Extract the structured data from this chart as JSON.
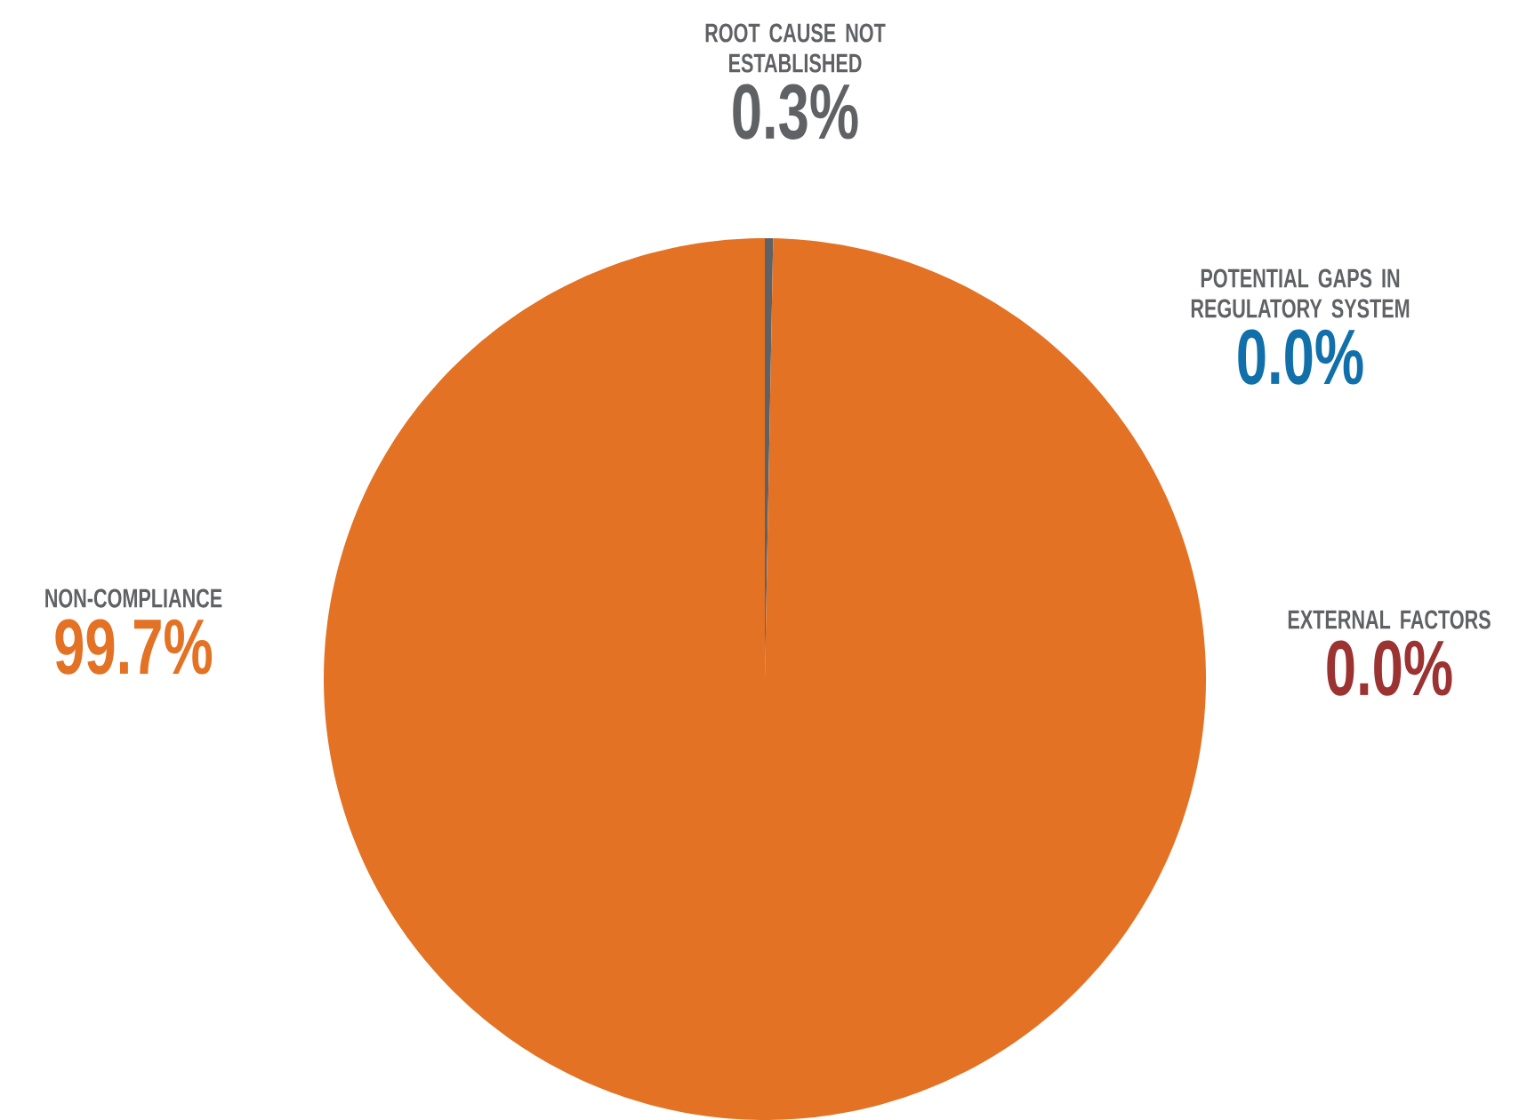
{
  "chart_data": {
    "type": "pie",
    "categories": [
      "ROOT CAUSE NOT ESTABLISHED",
      "POTENTIAL GAPS IN REGULATORY SYSTEM",
      "EXTERNAL FACTORS",
      "NON-COMPLIANCE"
    ],
    "values": [
      0.3,
      0.0,
      0.0,
      99.7
    ],
    "colors": [
      "#5f6164",
      "#1170aa",
      "#9b3333",
      "#e37224"
    ],
    "value_labels": [
      "0.3%",
      "0.0%",
      "0.0%",
      "99.7%"
    ]
  }
}
